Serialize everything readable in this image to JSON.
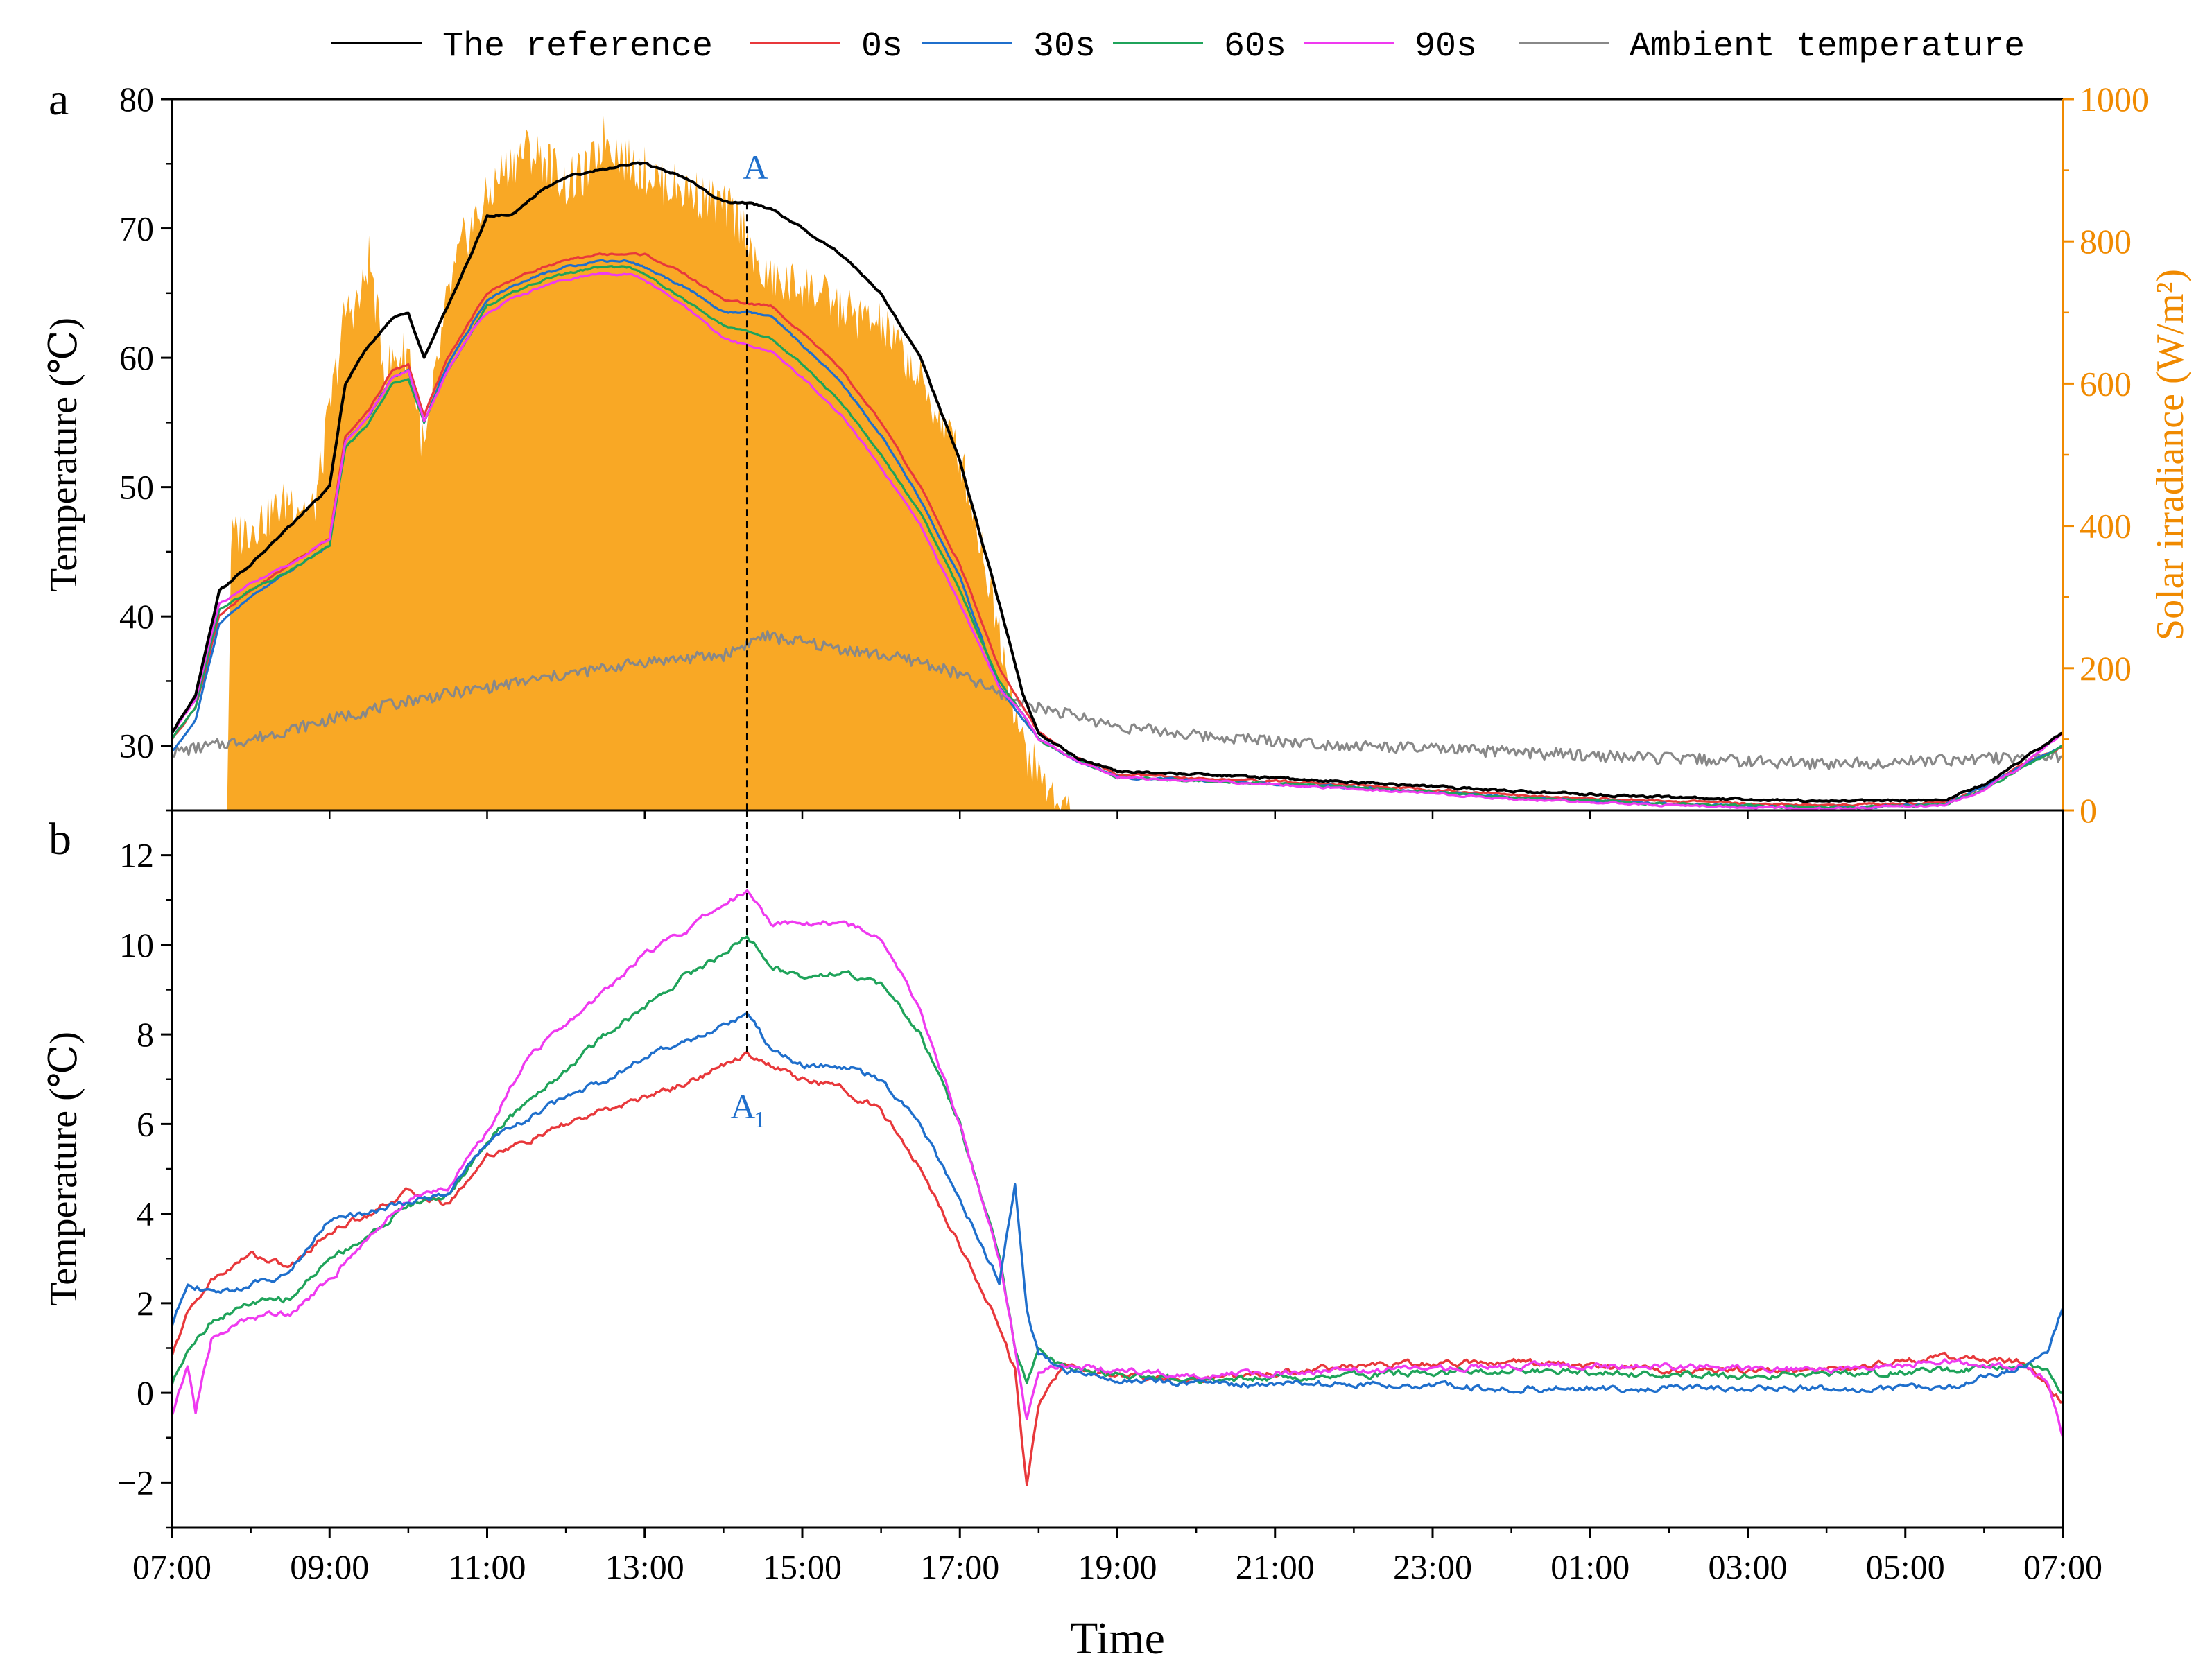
{
  "colors": {
    "reference": "#000000",
    "s0": "#e8383b",
    "s30": "#1f6fcc",
    "s60": "#1fa35a",
    "s90": "#ef3af0",
    "ambient": "#888888",
    "irradiance": "#f9a825",
    "annotation": "#1f6fcc",
    "right_axis": "#f08a00"
  },
  "legend": [
    "The reference",
    "0s",
    "30s",
    "60s",
    "90s",
    "Ambient temperature"
  ],
  "chart_data": [
    {
      "panel": "a",
      "type": "line",
      "xlabel": "",
      "ylabel": "Temperature (℃)",
      "y2label": "Solar irradiance (W/m²)",
      "ylim": [
        25,
        80
      ],
      "y2lim": [
        0,
        1000
      ],
      "yticks": [
        30,
        40,
        50,
        60,
        70,
        80
      ],
      "y2ticks": [
        0,
        200,
        400,
        600,
        800,
        1000
      ],
      "x_range_hours": [
        7,
        31
      ],
      "x_unit": "hour of day (values above 24 are the following day)",
      "x_ticks": [
        "07:00",
        "09:00",
        "11:00",
        "13:00",
        "15:00",
        "17:00",
        "19:00",
        "21:00",
        "23:00",
        "01:00",
        "03:00",
        "05:00",
        "07:00"
      ],
      "annotation": {
        "label": "A",
        "x": 14.3
      },
      "irradiance": {
        "name": "Solar irradiance",
        "x": [
          7.7,
          7.75,
          8.0,
          8.3,
          8.5,
          8.8,
          9.0,
          9.2,
          9.4,
          9.5,
          9.7,
          10.0,
          10.2,
          10.5,
          10.7,
          11.0,
          11.2,
          11.5,
          11.8,
          12.0,
          12.3,
          12.5,
          12.8,
          13.0,
          13.3,
          13.6,
          14.0,
          14.3,
          14.4,
          14.7,
          15.0,
          15.3,
          15.6,
          16.0,
          16.3,
          16.6,
          17.0,
          17.3,
          17.6,
          17.8,
          18.0,
          18.2,
          18.4
        ],
        "values": [
          0,
          380,
          400,
          420,
          440,
          420,
          560,
          700,
          720,
          780,
          620,
          650,
          500,
          720,
          800,
          860,
          900,
          930,
          910,
          880,
          900,
          950,
          910,
          900,
          880,
          870,
          850,
          820,
          760,
          740,
          740,
          720,
          700,
          680,
          640,
          580,
          500,
          360,
          200,
          90,
          50,
          20,
          0
        ]
      },
      "series": [
        {
          "name": "The reference",
          "key": "reference",
          "x": [
            7,
            7.3,
            7.6,
            8.0,
            8.5,
            9.0,
            9.2,
            9.5,
            9.8,
            10.0,
            10.2,
            10.5,
            10.8,
            11.0,
            11.3,
            11.7,
            12.0,
            12.4,
            12.8,
            13.0,
            13.5,
            14.0,
            14.3,
            14.6,
            15.0,
            15.5,
            16.0,
            16.5,
            17.0,
            17.5,
            17.8,
            18.0,
            18.5,
            19.0,
            20.0,
            22.0,
            24.0,
            26.0,
            28.0,
            29.5,
            30.0,
            30.5,
            31.0
          ],
          "values": [
            31,
            34,
            42,
            44,
            47,
            50,
            58,
            61,
            63,
            63.5,
            60,
            64,
            68,
            71,
            71,
            73,
            74,
            74.5,
            75,
            75,
            74,
            72,
            72,
            71.5,
            70,
            68,
            65,
            60,
            52,
            41,
            34,
            31,
            29,
            28,
            27.8,
            27.2,
            26.5,
            26,
            25.7,
            25.8,
            27,
            29,
            31
          ]
        },
        {
          "name": "0s",
          "key": "s0",
          "x": [
            7,
            7.3,
            7.6,
            8.0,
            8.5,
            9.0,
            9.2,
            9.5,
            9.8,
            10.0,
            10.2,
            10.5,
            10.8,
            11.0,
            11.3,
            11.7,
            12.0,
            12.4,
            12.8,
            13.0,
            13.5,
            14.0,
            14.3,
            14.6,
            15.0,
            15.5,
            16.0,
            16.5,
            17.0,
            17.5,
            17.8,
            18.0,
            18.5,
            19.0,
            20.0,
            22.0,
            24.0,
            26.0,
            28.0,
            29.5,
            30.0,
            30.5,
            31.0
          ],
          "values": [
            30.5,
            33,
            40,
            42,
            44,
            46,
            54,
            56,
            59,
            59.5,
            55.5,
            60,
            63,
            65,
            66,
            67,
            67.5,
            68,
            68,
            68,
            66.5,
            64.5,
            64.2,
            64,
            62,
            59,
            55,
            50,
            44,
            36,
            33,
            31,
            29,
            27.8,
            27.5,
            27,
            26.2,
            25.7,
            25.4,
            25.6,
            26.8,
            28.5,
            30
          ]
        },
        {
          "name": "30s",
          "key": "s30",
          "x": [
            7,
            7.3,
            7.6,
            8.0,
            8.5,
            9.0,
            9.2,
            9.5,
            9.8,
            10.0,
            10.2,
            10.5,
            10.8,
            11.0,
            11.3,
            11.7,
            12.0,
            12.4,
            12.8,
            13.0,
            13.5,
            14.0,
            14.3,
            14.6,
            15.0,
            15.5,
            16.0,
            16.5,
            17.0,
            17.5,
            17.8,
            18.0,
            18.5,
            19.0,
            20.0,
            22.0,
            24.0,
            26.0,
            28.0,
            29.5,
            30.0,
            30.5,
            31.0
          ],
          "values": [
            29.5,
            32,
            39.5,
            41.5,
            43.5,
            45.5,
            53.5,
            55.5,
            58.5,
            59,
            55,
            59.5,
            62.5,
            64.5,
            65.5,
            66.5,
            67,
            67.5,
            67.5,
            67,
            65.5,
            63.5,
            63.5,
            63.2,
            61,
            58,
            54,
            49,
            43,
            34.5,
            32,
            30.5,
            28.8,
            27.6,
            27.3,
            26.8,
            26,
            25.5,
            25.2,
            25.5,
            26.8,
            28.5,
            30
          ]
        },
        {
          "name": "60s",
          "key": "s60",
          "x": [
            7,
            7.3,
            7.6,
            8.0,
            8.5,
            9.0,
            9.2,
            9.5,
            9.8,
            10.0,
            10.2,
            10.5,
            10.8,
            11.0,
            11.3,
            11.7,
            12.0,
            12.4,
            12.8,
            13.0,
            13.5,
            14.0,
            14.3,
            14.6,
            15.0,
            15.5,
            16.0,
            16.5,
            17.0,
            17.5,
            17.8,
            18.0,
            18.5,
            19.0,
            20.0,
            22.0,
            24.0,
            26.0,
            28.0,
            29.5,
            30.0,
            30.5,
            31.0
          ],
          "values": [
            30.5,
            33,
            40.5,
            42,
            43.5,
            45.5,
            53,
            55,
            58,
            58.5,
            55,
            59,
            62,
            64,
            65,
            66,
            66.5,
            67,
            67,
            66.5,
            64.5,
            62.5,
            62,
            61.5,
            59.5,
            56.5,
            52.5,
            48,
            42,
            35,
            32.5,
            30.5,
            28.8,
            27.6,
            27.3,
            26.8,
            26,
            25.5,
            25.2,
            25.4,
            26.6,
            28.3,
            30
          ]
        },
        {
          "name": "90s",
          "key": "s90",
          "x": [
            7,
            7.3,
            7.6,
            8.0,
            8.5,
            9.0,
            9.2,
            9.5,
            9.8,
            10.0,
            10.2,
            10.5,
            10.8,
            11.0,
            11.3,
            11.7,
            12.0,
            12.4,
            12.8,
            13.0,
            13.5,
            14.0,
            14.3,
            14.6,
            15.0,
            15.5,
            16.0,
            16.5,
            17.0,
            17.5,
            17.8,
            18.0,
            18.5,
            19.0,
            20.0,
            22.0,
            24.0,
            26.0,
            28.0,
            29.5,
            30.0,
            30.5,
            31.0
          ],
          "values": [
            31,
            33.5,
            41,
            42.5,
            44,
            46,
            53.5,
            55.5,
            58.5,
            59,
            55,
            59,
            62,
            63.5,
            64.5,
            65.5,
            66,
            66.5,
            66.5,
            66,
            64,
            61.5,
            61,
            60.5,
            58.5,
            55.5,
            51.5,
            47,
            41,
            34.5,
            32.5,
            30.5,
            28.8,
            27.6,
            27.3,
            26.7,
            25.9,
            25.4,
            25.1,
            25.4,
            26.6,
            28.5,
            31
          ]
        },
        {
          "name": "Ambient temperature",
          "key": "ambient",
          "x": [
            7,
            8,
            9,
            10,
            11,
            12,
            13,
            14,
            14.5,
            15,
            16,
            16.5,
            17,
            17.5,
            18,
            19,
            20,
            22,
            24,
            26,
            28,
            30,
            31
          ],
          "values": [
            29.5,
            30.5,
            32,
            33.5,
            34.5,
            35.5,
            36.5,
            37,
            38.5,
            38,
            37,
            36.5,
            35.5,
            34,
            33,
            31.5,
            30.8,
            30,
            29.5,
            29,
            28.6,
            29,
            29.2
          ]
        }
      ]
    },
    {
      "panel": "b",
      "type": "line",
      "xlabel": "Time",
      "ylabel": "Temperature (℃)",
      "ylim": [
        -3,
        13
      ],
      "yticks": [
        -2,
        0,
        2,
        4,
        6,
        8,
        10,
        12
      ],
      "x_range_hours": [
        7,
        31
      ],
      "x_unit": "hour of day (values above 24 are the following day)",
      "x_ticks": [
        "07:00",
        "09:00",
        "11:00",
        "13:00",
        "15:00",
        "17:00",
        "19:00",
        "21:00",
        "23:00",
        "01:00",
        "03:00",
        "05:00",
        "07:00"
      ],
      "annotation": {
        "label": "A",
        "subscript": "1",
        "x": 14.3
      },
      "series": [
        {
          "name": "0s",
          "key": "s0",
          "x": [
            7,
            7.2,
            7.5,
            8.0,
            8.5,
            9.0,
            9.5,
            10.0,
            10.5,
            11.0,
            11.5,
            12.0,
            12.5,
            13.0,
            13.5,
            14.0,
            14.3,
            14.6,
            15.0,
            15.5,
            16.0,
            16.5,
            17.0,
            17.5,
            17.7,
            17.85,
            18.0,
            18.3,
            19.0,
            20.0,
            22.0,
            24.0,
            26.0,
            28.0,
            29.5,
            30.5,
            30.8,
            31.0
          ],
          "values": [
            0.8,
            1.8,
            2.5,
            3.1,
            2.8,
            3.6,
            4.0,
            4.5,
            4.2,
            5.3,
            5.6,
            6.0,
            6.3,
            6.6,
            6.9,
            7.3,
            7.6,
            7.3,
            7.0,
            6.8,
            6.3,
            5.0,
            3.3,
            1.5,
            0.5,
            -2.1,
            -0.3,
            0.6,
            0.4,
            0.3,
            0.6,
            0.7,
            0.5,
            0.5,
            0.8,
            0.7,
            0.2,
            -0.2
          ]
        },
        {
          "name": "30s",
          "key": "s30",
          "x": [
            7,
            7.2,
            7.5,
            8.0,
            8.5,
            9.0,
            9.5,
            10.0,
            10.5,
            11.0,
            11.5,
            12.0,
            12.5,
            13.0,
            13.5,
            14.0,
            14.3,
            14.6,
            15.0,
            15.5,
            16.0,
            16.5,
            17.0,
            17.5,
            17.7,
            17.85,
            18.0,
            18.3,
            19.0,
            20.0,
            22.0,
            24.0,
            26.0,
            28.0,
            29.5,
            30.5,
            30.8,
            31.0
          ],
          "values": [
            1.5,
            2.5,
            2.2,
            2.4,
            2.7,
            3.9,
            4.0,
            4.3,
            4.4,
            5.6,
            6.1,
            6.6,
            7.0,
            7.5,
            7.8,
            8.2,
            8.5,
            7.7,
            7.3,
            7.3,
            7.0,
            6.0,
            4.3,
            2.5,
            4.6,
            1.8,
            0.9,
            0.5,
            0.3,
            0.2,
            0.2,
            0.1,
            0.1,
            0.1,
            0.1,
            0.6,
            0.9,
            1.9
          ]
        },
        {
          "name": "60s",
          "key": "s60",
          "x": [
            7,
            7.2,
            7.5,
            8.0,
            8.5,
            9.0,
            9.5,
            10.0,
            10.5,
            11.0,
            11.5,
            12.0,
            12.5,
            13.0,
            13.5,
            14.0,
            14.3,
            14.6,
            15.0,
            15.5,
            16.0,
            16.5,
            17.0,
            17.5,
            17.7,
            17.85,
            18.0,
            18.3,
            19.0,
            20.0,
            22.0,
            24.0,
            26.0,
            28.0,
            29.5,
            30.5,
            30.8,
            31.0
          ],
          "values": [
            0.2,
            1.0,
            1.6,
            2.0,
            2.1,
            3.0,
            3.5,
            4.2,
            4.4,
            5.6,
            6.5,
            7.2,
            8.0,
            8.6,
            9.3,
            9.8,
            10.2,
            9.5,
            9.3,
            9.4,
            9.1,
            8.0,
            6.0,
            3.0,
            1.0,
            0.2,
            0.9,
            0.6,
            0.4,
            0.3,
            0.4,
            0.5,
            0.4,
            0.4,
            0.5,
            0.6,
            0.5,
            0.0
          ]
        },
        {
          "name": "90s",
          "key": "s90",
          "x": [
            7,
            7.2,
            7.3,
            7.5,
            8.0,
            8.5,
            9.0,
            9.5,
            10.0,
            10.5,
            11.0,
            11.5,
            12.0,
            12.5,
            13.0,
            13.5,
            14.0,
            14.3,
            14.6,
            15.0,
            15.5,
            16.0,
            16.5,
            17.0,
            17.5,
            17.7,
            17.85,
            18.0,
            18.3,
            19.0,
            20.0,
            22.0,
            24.0,
            26.0,
            28.0,
            29.5,
            30.5,
            30.8,
            31.0
          ],
          "values": [
            -0.5,
            0.6,
            -0.4,
            1.2,
            1.7,
            1.8,
            2.5,
            3.5,
            4.3,
            4.6,
            5.8,
            7.5,
            8.2,
            9.0,
            9.8,
            10.3,
            10.9,
            11.2,
            10.5,
            10.5,
            10.5,
            10.2,
            8.5,
            6.0,
            3.0,
            1.0,
            -0.6,
            0.5,
            0.6,
            0.5,
            0.4,
            0.5,
            0.6,
            0.6,
            0.5,
            0.7,
            0.6,
            0.3,
            -1.0
          ]
        }
      ]
    }
  ]
}
